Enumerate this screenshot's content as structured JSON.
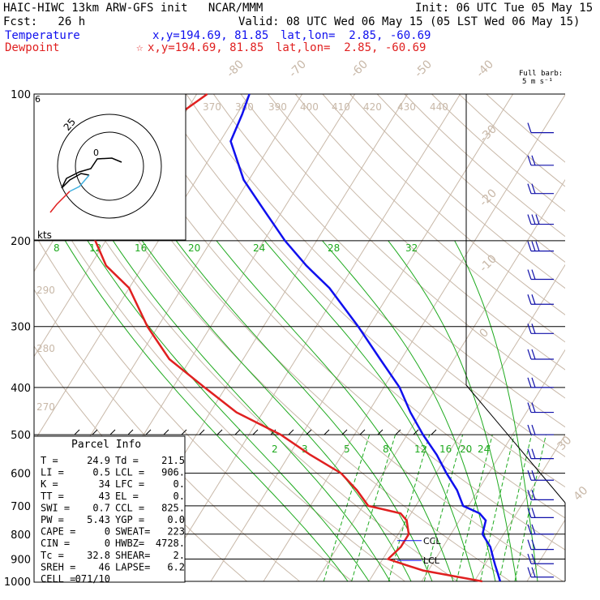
{
  "header": {
    "title": "HAIC-HIWC 13km ARW-GFS init   NCAR/MMM",
    "init": "Init: 06 UTC Tue 05 May 15",
    "fcst": "Fcst:   26 h",
    "valid": "Valid: 08 UTC Wed 06 May 15 (05 LST Wed 06 May 15)",
    "temp_label": "Temperature",
    "temp_xy": "x,y=194.69, 81.85",
    "temp_latlon": "lat,lon=  2.85, -60.69",
    "dew_label": "Dewpoint",
    "dew_marker": "☆",
    "dew_xy": "x,y=194.69, 81.85",
    "dew_latlon": "lat,lon=  2.85, -60.69",
    "barb_legend_1": "Full barb:",
    "barb_legend_2": "5 m s⁻¹"
  },
  "colors": {
    "temperature": "#1010ee",
    "dewpoint": "#e02020",
    "isotherm": "#c8b8a8",
    "dry_adiabat": "#1faa1f",
    "mixing_ratio": "#1faa1f",
    "wind_barb": "#1010aa"
  },
  "chart_data": {
    "type": "line",
    "title": "",
    "xlabel": "",
    "ylabel": "",
    "pressure_levels": [
      100,
      200,
      300,
      400,
      500,
      600,
      700,
      800,
      900,
      1000
    ],
    "pressure_tick_labels": [
      "100",
      "200",
      "300",
      "400",
      "500",
      "600",
      "700",
      "800",
      "900",
      "1000"
    ],
    "isotherm_labels": [
      "-80",
      "-70",
      "-60",
      "-50",
      "-40",
      "-30",
      "-20",
      "-10",
      "0",
      "30",
      "40"
    ],
    "theta_labels": [
      "370",
      "380",
      "390",
      "400",
      "410",
      "420",
      "430",
      "440",
      "290",
      "280",
      "270"
    ],
    "mixing_ratio_upper_labels": [
      "8",
      "12",
      "16",
      "20",
      "24",
      "28",
      "32"
    ],
    "mixing_ratio_lower_labels": [
      "2",
      "3",
      "5",
      "8",
      "12",
      "16",
      "20",
      "24"
    ],
    "series": [
      {
        "name": "Temperature",
        "pressure": [
          100,
          110,
          125,
          150,
          175,
          200,
          225,
          250,
          300,
          350,
          400,
          450,
          500,
          550,
          600,
          650,
          700,
          725,
          750,
          800,
          850,
          900,
          925,
          950,
          1000
        ],
        "temperature": [
          -80,
          -79,
          -78,
          -71,
          -63,
          -56,
          -49,
          -42,
          -32,
          -24,
          -17,
          -12,
          -7,
          -2,
          2,
          6,
          9,
          13,
          15,
          16,
          19,
          21,
          22,
          23,
          24.9
        ]
      },
      {
        "name": "Dewpoint",
        "pressure": [
          100,
          110,
          125,
          150,
          175,
          200,
          225,
          250,
          300,
          350,
          400,
          450,
          500,
          550,
          600,
          650,
          700,
          725,
          750,
          800,
          850,
          900,
          925,
          950,
          1000
        ],
        "dewpoint": [
          -88,
          -91,
          -95,
          -99,
          -98,
          -92,
          -87,
          -80,
          -72,
          -64,
          -54,
          -45,
          -34,
          -26,
          -18,
          -13,
          -9,
          -2,
          0,
          2,
          2,
          1,
          5,
          9,
          21.5
        ]
      }
    ],
    "markers": [
      {
        "label": "CCL",
        "pressure": 825
      },
      {
        "label": "LCL",
        "pressure": 906
      }
    ],
    "hodograph": {
      "ring_label": "25",
      "inner_label": "0",
      "corner_label": "6",
      "units_label": "kts"
    },
    "parcel_info": {
      "title": "Parcel Info",
      "rows": [
        [
          "T  =",
          "24.9",
          "Td =",
          "21.5"
        ],
        [
          "LI =",
          "0.5",
          "LCL =",
          "906."
        ],
        [
          "K  =",
          "34",
          "LFC =",
          "0."
        ],
        [
          "TT =",
          "43",
          "EL  =",
          "0."
        ],
        [
          "SWI =",
          "0.7",
          "CCL =",
          "825."
        ],
        [
          "PW =",
          "5.43",
          "YGP =",
          "0.0"
        ],
        [
          "CAPE =",
          "0",
          "SWEAT=",
          "223"
        ],
        [
          "CIN  =",
          "0",
          "HWBZ=",
          "4728."
        ],
        [
          "Tc =",
          "32.8",
          "SHEAR=",
          "2."
        ],
        [
          "SREH =",
          "46",
          "LAPSE=",
          "6.2"
        ],
        [
          "CELL =",
          "071/10",
          "",
          ""
        ]
      ]
    },
    "wind_barbs": [
      {
        "pressure": 120,
        "barb_count": 1
      },
      {
        "pressure": 140,
        "barb_count": 2
      },
      {
        "pressure": 160,
        "barb_count": 2
      },
      {
        "pressure": 185,
        "barb_count": 3
      },
      {
        "pressure": 210,
        "barb_count": 3
      },
      {
        "pressure": 240,
        "barb_count": 2
      },
      {
        "pressure": 270,
        "barb_count": 2
      },
      {
        "pressure": 310,
        "barb_count": 2
      },
      {
        "pressure": 350,
        "barb_count": 2
      },
      {
        "pressure": 400,
        "barb_count": 2
      },
      {
        "pressure": 450,
        "barb_count": 2
      },
      {
        "pressure": 500,
        "barb_count": 2
      },
      {
        "pressure": 560,
        "barb_count": 2
      },
      {
        "pressure": 620,
        "barb_count": 2
      },
      {
        "pressure": 680,
        "barb_count": 2
      },
      {
        "pressure": 740,
        "barb_count": 2
      },
      {
        "pressure": 800,
        "barb_count": 2
      },
      {
        "pressure": 860,
        "barb_count": 2
      },
      {
        "pressure": 920,
        "barb_count": 2
      },
      {
        "pressure": 980,
        "barb_count": 2
      }
    ]
  }
}
